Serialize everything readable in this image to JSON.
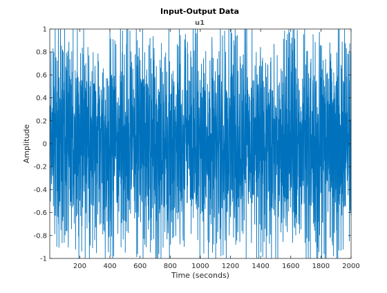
{
  "chart_data": {
    "type": "line",
    "title": "Input-Output Data",
    "subtitle": "u1",
    "xlabel": "Time (seconds)",
    "ylabel": "Amplitude",
    "xlim": [
      1,
      2000
    ],
    "ylim": [
      -1,
      1
    ],
    "xticks": [
      200,
      400,
      600,
      800,
      1000,
      1200,
      1400,
      1600,
      1800,
      2000
    ],
    "yticks": [
      -1,
      -0.8,
      -0.6,
      -0.4,
      -0.2,
      0,
      0.2,
      0.4,
      0.6,
      0.8,
      1
    ],
    "xtick_labels": [
      "200",
      "400",
      "600",
      "800",
      "1000",
      "1200",
      "1400",
      "1600",
      "1800",
      "2000"
    ],
    "ytick_labels": [
      "-1",
      "-0.8",
      "-0.6",
      "-0.4",
      "-0.2",
      "0",
      "0.2",
      "0.4",
      "0.6",
      "0.8",
      "1"
    ],
    "grid": false,
    "series": [
      {
        "color": "#0072bd",
        "sampling": "t = 1, 2, ..., 2000",
        "signal": "multisine",
        "approx_values": "dense oscillation between -1 and 1 with periodic envelope pattern"
      }
    ]
  }
}
